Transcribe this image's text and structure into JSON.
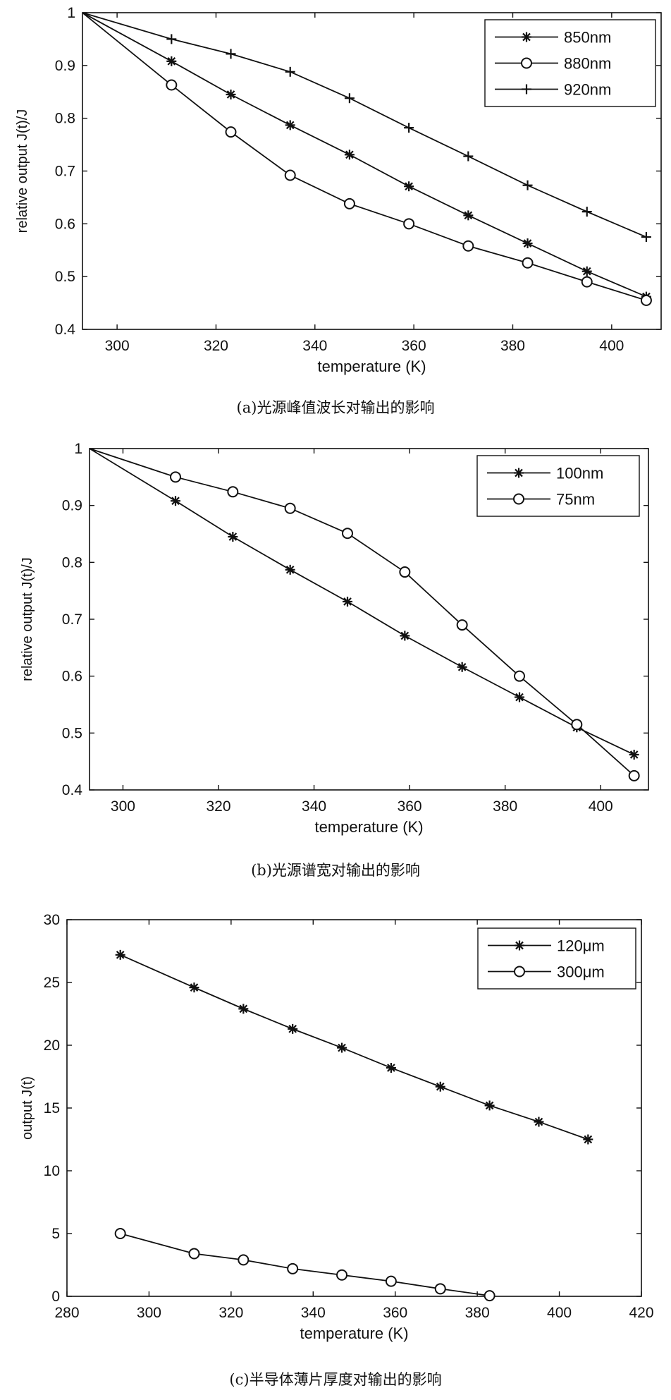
{
  "chart_data": [
    {
      "type": "line",
      "title": "",
      "xlabel": "temperature (K)",
      "ylabel": "relative output J(t)/J",
      "xlim": [
        293,
        410
      ],
      "ylim": [
        0.4,
        1.0
      ],
      "xticks": [
        300,
        320,
        340,
        360,
        380,
        400
      ],
      "yticks": [
        0.4,
        0.5,
        0.6,
        0.7,
        0.8,
        0.9,
        1.0
      ],
      "ytick_labels": [
        "0.4",
        "0.5",
        "0.6",
        "0.7",
        "0.8",
        "0.9",
        "1"
      ],
      "legend": "top-right",
      "grid": false,
      "caption": "(a)光源峰值波长对输出的影响",
      "series": [
        {
          "name": "850nm",
          "marker": "asterisk",
          "x": [
            293,
            311,
            323,
            335,
            347,
            359,
            371,
            383,
            395,
            407
          ],
          "y": [
            1.0,
            0.908,
            0.845,
            0.787,
            0.731,
            0.671,
            0.616,
            0.563,
            0.51,
            0.462
          ]
        },
        {
          "name": "880nm",
          "marker": "circle",
          "x": [
            293,
            311,
            323,
            335,
            347,
            359,
            371,
            383,
            395,
            407
          ],
          "y": [
            1.0,
            0.863,
            0.774,
            0.692,
            0.638,
            0.6,
            0.558,
            0.526,
            0.49,
            0.455
          ]
        },
        {
          "name": "920nm",
          "marker": "plus",
          "x": [
            293,
            311,
            323,
            335,
            347,
            359,
            371,
            383,
            395,
            407
          ],
          "y": [
            1.0,
            0.95,
            0.922,
            0.888,
            0.838,
            0.782,
            0.728,
            0.673,
            0.623,
            0.575
          ]
        }
      ]
    },
    {
      "type": "line",
      "title": "",
      "xlabel": "temperature (K)",
      "ylabel": "relative output J(t)/J",
      "xlim": [
        293,
        410
      ],
      "ylim": [
        0.4,
        1.0
      ],
      "xticks": [
        300,
        320,
        340,
        360,
        380,
        400
      ],
      "yticks": [
        0.4,
        0.5,
        0.6,
        0.7,
        0.8,
        0.9,
        1.0
      ],
      "ytick_labels": [
        "0.4",
        "0.5",
        "0.6",
        "0.7",
        "0.8",
        "0.9",
        "1"
      ],
      "legend": "top-right",
      "grid": false,
      "caption": "(b)光源谱宽对输出的影响",
      "series": [
        {
          "name": "100nm",
          "marker": "asterisk",
          "x": [
            293,
            311,
            323,
            335,
            347,
            359,
            371,
            383,
            395,
            407
          ],
          "y": [
            1.0,
            0.908,
            0.845,
            0.787,
            0.731,
            0.671,
            0.616,
            0.563,
            0.51,
            0.462
          ]
        },
        {
          "name": "75nm",
          "marker": "circle",
          "x": [
            293,
            311,
            323,
            335,
            347,
            359,
            371,
            383,
            395,
            407
          ],
          "y": [
            1.0,
            0.95,
            0.924,
            0.895,
            0.851,
            0.783,
            0.69,
            0.6,
            0.515,
            0.425
          ]
        }
      ]
    },
    {
      "type": "line",
      "title": "",
      "xlabel": "temperature (K)",
      "ylabel": "output J(t)",
      "xlim": [
        280,
        420
      ],
      "ylim": [
        0,
        30
      ],
      "xticks": [
        280,
        300,
        320,
        340,
        360,
        380,
        400,
        420
      ],
      "yticks": [
        0,
        5,
        10,
        15,
        20,
        25,
        30
      ],
      "ytick_labels": [
        "0",
        "5",
        "10",
        "15",
        "20",
        "25",
        "30"
      ],
      "legend": "top-right",
      "grid": false,
      "caption": "(c)半导体薄片厚度对输出的影响",
      "series": [
        {
          "name": "120μm",
          "marker": "asterisk",
          "x": [
            293,
            311,
            323,
            335,
            347,
            359,
            371,
            383,
            395,
            407
          ],
          "y": [
            27.2,
            24.6,
            22.9,
            21.3,
            19.8,
            18.2,
            16.7,
            15.2,
            13.9,
            12.5
          ]
        },
        {
          "name": "300μm",
          "marker": "circle",
          "x": [
            293,
            311,
            323,
            335,
            347,
            359,
            371,
            383
          ],
          "y": [
            5.0,
            3.4,
            2.9,
            2.2,
            1.7,
            1.2,
            0.6,
            0.05
          ]
        }
      ]
    }
  ]
}
